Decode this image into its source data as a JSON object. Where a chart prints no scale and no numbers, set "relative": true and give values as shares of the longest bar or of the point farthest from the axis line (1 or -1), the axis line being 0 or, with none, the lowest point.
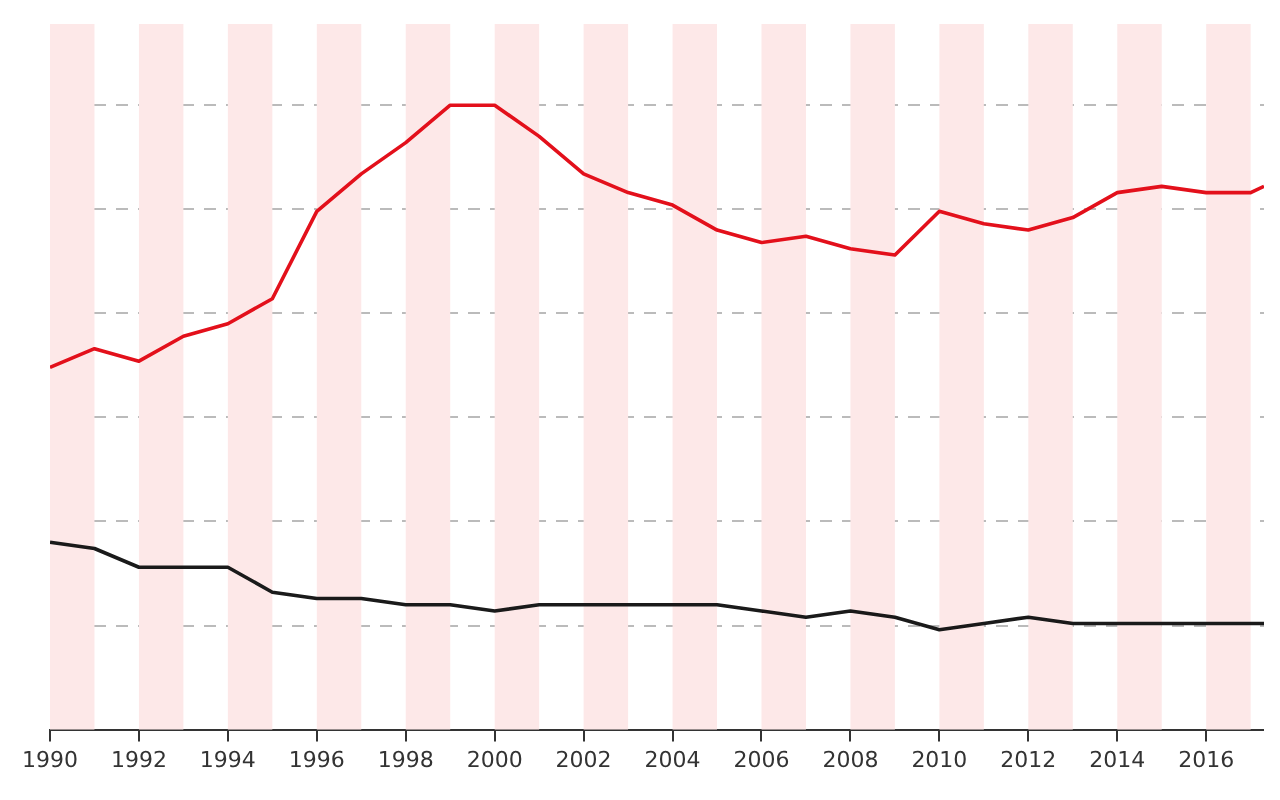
{
  "chart_data": {
    "type": "line",
    "relative": true,
    "x": [
      1990,
      1991,
      1992,
      1993,
      1994,
      1995,
      1996,
      1997,
      1998,
      1999,
      2000,
      2001,
      2002,
      2003,
      2004,
      2005,
      2006,
      2007,
      2008,
      2009,
      2010,
      2011,
      2012,
      2013,
      2014,
      2015,
      2016,
      2017,
      2017.3
    ],
    "series": [
      {
        "color": "#e3101b",
        "values": [
          0.58,
          0.61,
          0.59,
          0.63,
          0.65,
          0.69,
          0.83,
          0.89,
          0.94,
          1,
          1,
          0.95,
          0.89,
          0.86,
          0.84,
          0.8,
          0.78,
          0.79,
          0.77,
          0.76,
          0.83,
          0.81,
          0.8,
          0.82,
          0.86,
          0.87,
          0.86,
          0.86,
          0.87
        ]
      },
      {
        "color": "#1a1a1a",
        "values": [
          0.3,
          0.29,
          0.26,
          0.26,
          0.26,
          0.22,
          0.21,
          0.21,
          0.2,
          0.2,
          0.19,
          0.2,
          0.2,
          0.2,
          0.2,
          0.2,
          0.19,
          0.18,
          0.19,
          0.18,
          0.16,
          0.17,
          0.18,
          0.17,
          0.17,
          0.17,
          0.17,
          0.17,
          0.17
        ]
      }
    ],
    "xlim": [
      1990,
      2017.3
    ],
    "xticks": [
      1990,
      1992,
      1994,
      1996,
      1998,
      2000,
      2002,
      2004,
      2006,
      2008,
      2010,
      2012,
      2014,
      2016
    ],
    "bands": [
      {
        "axis": "x",
        "from": 1990,
        "to": 1991,
        "color": "#fde8e8"
      },
      {
        "axis": "x",
        "from": 1992,
        "to": 1993,
        "color": "#fde8e8"
      },
      {
        "axis": "x",
        "from": 1994,
        "to": 1995,
        "color": "#fde8e8"
      },
      {
        "axis": "x",
        "from": 1996,
        "to": 1997,
        "color": "#fde8e8"
      },
      {
        "axis": "x",
        "from": 1998,
        "to": 1999,
        "color": "#fde8e8"
      },
      {
        "axis": "x",
        "from": 2000,
        "to": 2001,
        "color": "#fde8e8"
      },
      {
        "axis": "x",
        "from": 2002,
        "to": 2003,
        "color": "#fde8e8"
      },
      {
        "axis": "x",
        "from": 2004,
        "to": 2005,
        "color": "#fde8e8"
      },
      {
        "axis": "x",
        "from": 2006,
        "to": 2007,
        "color": "#fde8e8"
      },
      {
        "axis": "x",
        "from": 2008,
        "to": 2009,
        "color": "#fde8e8"
      },
      {
        "axis": "x",
        "from": 2010,
        "to": 2011,
        "color": "#fde8e8"
      },
      {
        "axis": "x",
        "from": 2012,
        "to": 2013,
        "color": "#fde8e8"
      },
      {
        "axis": "x",
        "from": 2014,
        "to": 2015,
        "color": "#fde8e8"
      },
      {
        "axis": "x",
        "from": 2016,
        "to": 2017,
        "color": "#fde8e8"
      }
    ],
    "grid": "y",
    "legend": false,
    "marker": "none",
    "line_style": "solid"
  }
}
